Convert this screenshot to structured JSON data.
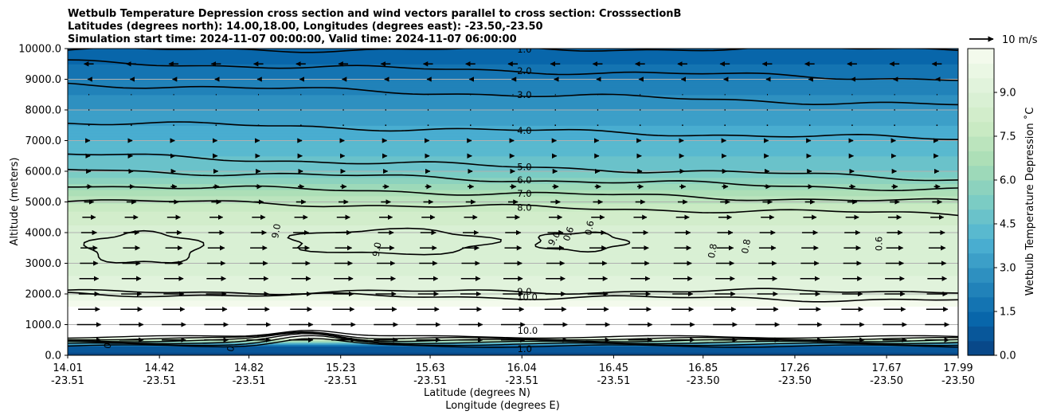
{
  "title_lines": [
    "Wetbulb Temperature Depression cross section and wind vectors parallel to cross section: CrosssectionB",
    "Latitudes (degrees north): 14.00,18.00, Longitudes (degrees east): -23.50,-23.50",
    "Simulation start time: 2024-11-07 00:00:00, Valid time: 2024-11-07 06:00:00"
  ],
  "chart_data": {
    "type": "contour",
    "title": "Wetbulb Temperature Depression cross section and wind vectors parallel to cross section: CrosssectionB",
    "xlabel_lat": "Latitude (degrees N)",
    "xlabel_lon": "Longitude (degrees E)",
    "ylabel": "Altitude (meters)",
    "ylim": [
      0,
      10000
    ],
    "xlim": [
      14.01,
      17.99
    ],
    "grid": "horizontal",
    "y_ticks": [
      {
        "value": 0,
        "label": "0.0"
      },
      {
        "value": 1000,
        "label": "1000.0"
      },
      {
        "value": 2000,
        "label": "2000.0"
      },
      {
        "value": 3000,
        "label": "3000.0"
      },
      {
        "value": 4000,
        "label": "4000.0"
      },
      {
        "value": 5000,
        "label": "5000.0"
      },
      {
        "value": 6000,
        "label": "6000.0"
      },
      {
        "value": 7000,
        "label": "7000.0"
      },
      {
        "value": 8000,
        "label": "8000.0"
      },
      {
        "value": 9000,
        "label": "9000.0"
      },
      {
        "value": 10000,
        "label": "10000.0"
      }
    ],
    "x_ticks": [
      {
        "lat": 14.01,
        "lat_label": "14.01",
        "lon_label": "-23.51"
      },
      {
        "lat": 14.42,
        "lat_label": "14.42",
        "lon_label": "-23.51"
      },
      {
        "lat": 14.82,
        "lat_label": "14.82",
        "lon_label": "-23.51"
      },
      {
        "lat": 15.23,
        "lat_label": "15.23",
        "lon_label": "-23.51"
      },
      {
        "lat": 15.63,
        "lat_label": "15.63",
        "lon_label": "-23.51"
      },
      {
        "lat": 16.04,
        "lat_label": "16.04",
        "lon_label": "-23.51"
      },
      {
        "lat": 16.45,
        "lat_label": "16.45",
        "lon_label": "-23.51"
      },
      {
        "lat": 16.85,
        "lat_label": "16.85",
        "lon_label": "-23.50"
      },
      {
        "lat": 17.26,
        "lat_label": "17.26",
        "lon_label": "-23.50"
      },
      {
        "lat": 17.67,
        "lat_label": "17.67",
        "lon_label": "-23.50"
      },
      {
        "lat": 17.99,
        "lat_label": "17.99",
        "lon_label": "-23.50"
      }
    ],
    "vertical_profile": [
      {
        "alt": 0,
        "value": 0.3
      },
      {
        "alt": 300,
        "value": 1.0
      },
      {
        "alt": 600,
        "value": 10.8
      },
      {
        "alt": 1000,
        "value": 11.0
      },
      {
        "alt": 1500,
        "value": 10.8
      },
      {
        "alt": 1800,
        "value": 10.0
      },
      {
        "alt": 2000,
        "value": 9.3
      },
      {
        "alt": 3000,
        "value": 8.8
      },
      {
        "alt": 4000,
        "value": 8.8
      },
      {
        "alt": 4700,
        "value": 8.0
      },
      {
        "alt": 5100,
        "value": 7.2
      },
      {
        "alt": 5500,
        "value": 6.2
      },
      {
        "alt": 6000,
        "value": 5.0
      },
      {
        "alt": 7000,
        "value": 4.0
      },
      {
        "alt": 8000,
        "value": 3.0
      },
      {
        "alt": 9000,
        "value": 2.0
      },
      {
        "alt": 10000,
        "value": 1.0
      }
    ],
    "contour_lines": [
      {
        "level": 1.0,
        "label": "1.0",
        "alt_start": 9950,
        "alt_end": 10000
      },
      {
        "level": 2.0,
        "label": "2.0",
        "alt_start": 9550,
        "alt_end": 9000
      },
      {
        "level": 3.0,
        "label": "3.0",
        "alt_start": 8850,
        "alt_end": 8150
      },
      {
        "level": 4.0,
        "label": "4.0",
        "alt_start": 7600,
        "alt_end": 7050
      },
      {
        "level": 5.0,
        "label": "5.0",
        "alt_start": 6550,
        "alt_end": 5750
      },
      {
        "level": 6.0,
        "label": "6.0",
        "alt_start": 6050,
        "alt_end": 5400
      },
      {
        "level": 7.0,
        "label": "7.0",
        "alt_start": 5550,
        "alt_end": 5000
      },
      {
        "level": 8.0,
        "label": "8.0",
        "alt_start": 5050,
        "alt_end": 4600
      },
      {
        "level": 9.0,
        "label": "9.0",
        "alt_start": 2050,
        "alt_end": 2100
      },
      {
        "level": 10.0,
        "label": "10.0",
        "alt_start": 2000,
        "alt_end": 1800
      }
    ],
    "extra_labels": [
      "9.0",
      "0.6",
      "0.8",
      "9.0",
      "0.6",
      "0.8",
      "9.0",
      "0.6",
      "0",
      "0",
      "10.0",
      "1.0"
    ],
    "wind_vector_key": "10 m/s",
    "wind_by_altitude": [
      {
        "alt": 500,
        "speed": 10.0
      },
      {
        "alt": 1000,
        "speed": 10.0
      },
      {
        "alt": 1500,
        "speed": 9.0
      },
      {
        "alt": 2000,
        "speed": 8.5
      },
      {
        "alt": 2500,
        "speed": 8.0
      },
      {
        "alt": 3000,
        "speed": 7.5
      },
      {
        "alt": 3500,
        "speed": 7.0
      },
      {
        "alt": 4000,
        "speed": 6.5
      },
      {
        "alt": 4500,
        "speed": 5.5
      },
      {
        "alt": 5000,
        "speed": 4.0
      },
      {
        "alt": 5500,
        "speed": 2.5
      },
      {
        "alt": 6000,
        "speed": 1.5
      },
      {
        "alt": 6500,
        "speed": 1.0
      },
      {
        "alt": 7000,
        "speed": 0.8
      },
      {
        "alt": 7500,
        "speed": 0.5
      },
      {
        "alt": 8000,
        "speed": 0.4
      },
      {
        "alt": 8500,
        "speed": 0.3
      },
      {
        "alt": 9000,
        "speed": -1.0
      },
      {
        "alt": 9500,
        "speed": -4.0
      }
    ],
    "colorbar": {
      "label": "Wetbulb Temperature Depression $^\\circ$C",
      "label_display": "Wetbulb Temperature Depression ˚C",
      "min": 0,
      "max": 10.5,
      "ticks": [
        "0.0",
        "1.5",
        "3.0",
        "4.5",
        "6.0",
        "7.5",
        "9.0"
      ],
      "tick_values": [
        0,
        1.5,
        3.0,
        4.5,
        6.0,
        7.5,
        9.0
      ],
      "colormap": "GnBu_r",
      "colors": [
        "#084081",
        "#0868ac",
        "#2b8cbe",
        "#4eb3d3",
        "#7bccc4",
        "#a8ddb5",
        "#ccebc5",
        "#e0f3db",
        "#f7fcf0"
      ]
    }
  }
}
